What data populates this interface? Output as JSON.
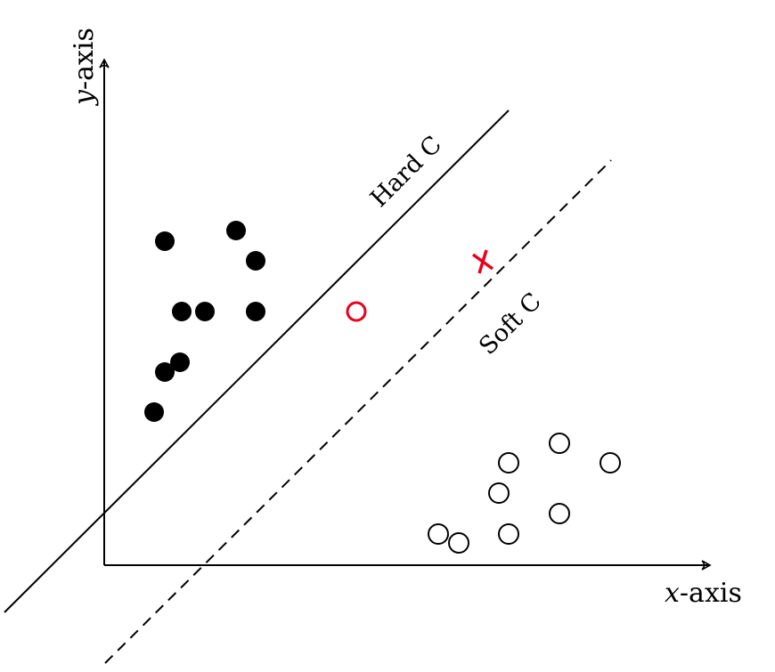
{
  "axes": {
    "x_label_var": "x",
    "x_label_suffix": "-axis",
    "y_label_var": "y",
    "y_label_suffix": "-axis"
  },
  "lines": {
    "hard": {
      "label": "Hard C",
      "style": "solid",
      "color": "#000000"
    },
    "soft": {
      "label": "Soft C",
      "style": "dashed",
      "color": "#000000"
    }
  },
  "colors": {
    "class_a": "#000000",
    "class_b_stroke": "#000000",
    "highlight": "#e8001c"
  },
  "legend_items": {
    "class_a_marker": "filled-circle",
    "class_b_marker": "hollow-circle",
    "highlight_circle_marker": "hollow-circle-red",
    "highlight_cross_marker": "cross-red"
  }
}
